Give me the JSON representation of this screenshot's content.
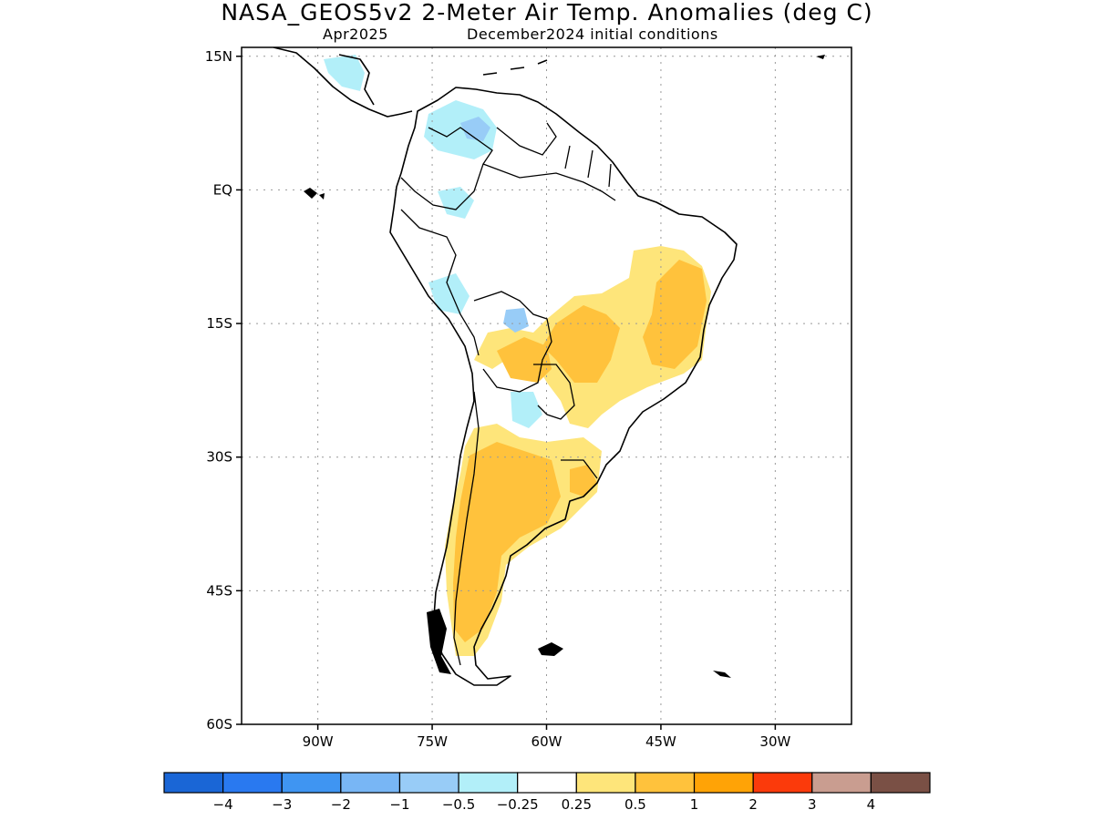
{
  "title": "NASA_GEOS5v2 2-Meter Air Temp. Anomalies (deg C)",
  "subtitle_left": "Apr2025",
  "subtitle_right": "December2024 initial conditions",
  "map": {
    "lat_labels": [
      "15N",
      "EQ",
      "15S",
      "30S",
      "45S",
      "60S"
    ],
    "lat_values": [
      15,
      0,
      -15,
      -30,
      -45,
      -60
    ],
    "lon_labels": [
      "90W",
      "75W",
      "60W",
      "45W",
      "30W"
    ],
    "lon_values": [
      -90,
      -75,
      -60,
      -45,
      -30
    ],
    "lon_range": [
      -100,
      -20
    ],
    "lat_range": [
      -60,
      16
    ],
    "land_color": "#ffffff",
    "coast_color": "#000000"
  },
  "colorbar": {
    "colors": [
      "#1a66d6",
      "#2979f0",
      "#3f95f2",
      "#78b6f5",
      "#98ccf7",
      "#b2eff9",
      "#ffffff",
      "#fee57a",
      "#ffc23c",
      "#ffa306",
      "#fb3a0b",
      "#c99d90",
      "#7a5045"
    ],
    "labels": [
      "−4",
      "−3",
      "−2",
      "−1",
      "−0.5",
      "−0.25",
      "0.25",
      "0.5",
      "1",
      "2",
      "3",
      "4"
    ]
  }
}
